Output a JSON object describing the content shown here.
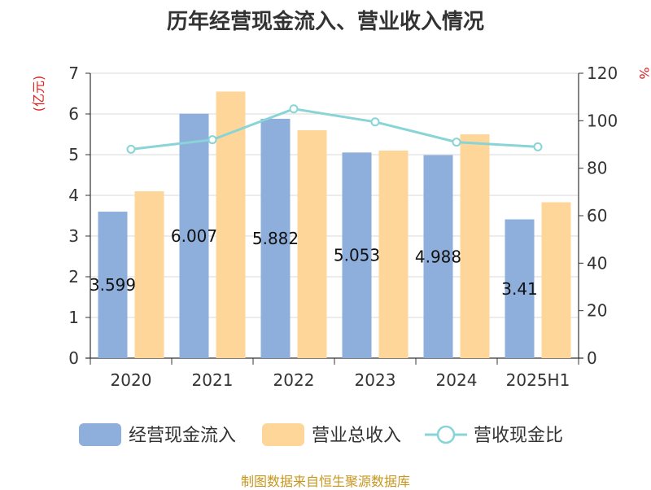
{
  "title": "历年经营现金流入、营业收入情况",
  "source": "制图数据来自恒生聚源数据库",
  "chart_data": {
    "type": "bar",
    "categories": [
      "2020",
      "2021",
      "2022",
      "2023",
      "2024",
      "2025H1"
    ],
    "left_axis_unit": "(亿元)",
    "right_axis_unit": "%",
    "left_ylim": [
      0,
      7
    ],
    "left_ticks": [
      0,
      1,
      2,
      3,
      4,
      5,
      6,
      7
    ],
    "right_ylim": [
      0,
      120
    ],
    "right_ticks": [
      0,
      20,
      40,
      60,
      80,
      100,
      120
    ],
    "grid": true,
    "legend_position": "bottom",
    "series": [
      {
        "name": "经营现金流入",
        "type": "bar",
        "axis": "left",
        "color": "#8eaedc",
        "values": [
          3.599,
          6.007,
          5.882,
          5.053,
          4.988,
          3.41
        ],
        "labels": [
          "3.599",
          "6.007",
          "5.882",
          "5.053",
          "4.988",
          "3.41"
        ]
      },
      {
        "name": "营业总收入",
        "type": "bar",
        "axis": "left",
        "color": "#ffd699",
        "values": [
          4.1,
          6.55,
          5.6,
          5.1,
          5.5,
          3.83
        ]
      },
      {
        "name": "营收现金比",
        "type": "line",
        "axis": "right",
        "color": "#88d4d6",
        "values": [
          88,
          92,
          105,
          99.5,
          91,
          89
        ]
      }
    ]
  }
}
